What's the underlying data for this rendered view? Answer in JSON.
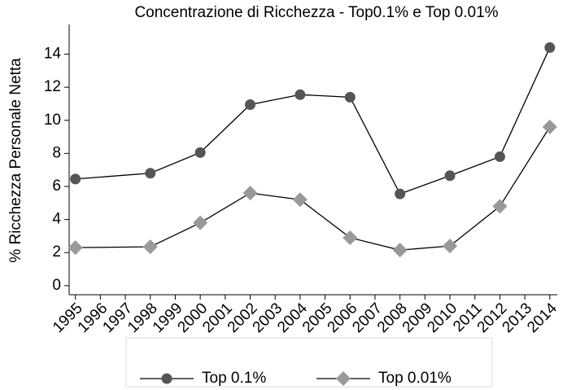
{
  "chart_data": {
    "type": "line",
    "title": "Concentrazione di Ricchezza - Top0.1%  e Top 0.01%",
    "y_label": "% Ricchezza Personale Netta",
    "x": [
      1995,
      1998,
      2000,
      2002,
      2004,
      2006,
      2008,
      2010,
      2012,
      2014
    ],
    "series": [
      {
        "name": "Top 0.1%",
        "color": "#555555",
        "line_color": "#000000",
        "marker": "circle",
        "values": [
          6.45,
          6.8,
          8.05,
          10.95,
          11.55,
          11.4,
          5.55,
          6.65,
          7.8,
          14.4
        ]
      },
      {
        "name": "Top 0.01%",
        "color": "#999999",
        "line_color": "#000000",
        "marker": "diamond",
        "values": [
          2.3,
          2.35,
          3.8,
          5.6,
          5.2,
          2.9,
          2.15,
          2.4,
          4.8,
          9.6
        ]
      }
    ],
    "xlim": [
      1994.75,
      2014.3
    ],
    "xticks": [
      1995,
      1996,
      1997,
      1998,
      1999,
      2000,
      2001,
      2002,
      2003,
      2004,
      2005,
      2006,
      2007,
      2008,
      2009,
      2010,
      2011,
      2012,
      2013,
      2014
    ],
    "ylim": [
      -0.55,
      15.8
    ],
    "yticks": [
      0,
      2,
      4,
      6,
      8,
      10,
      12,
      14
    ],
    "grid": false,
    "legend": "bottom"
  }
}
